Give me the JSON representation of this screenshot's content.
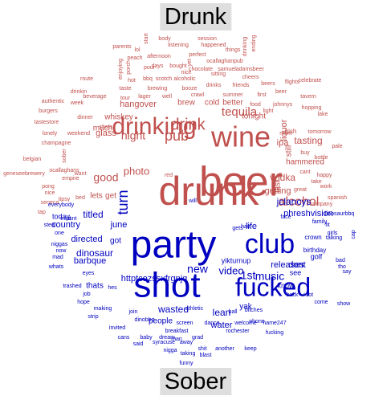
{
  "labels": {
    "top": "Drunk",
    "bottom": "Sober"
  },
  "colors": {
    "drunk": "#c0504d",
    "sober": "#0000c0"
  },
  "words": [
    {
      "t": "body",
      "c": "drunk",
      "s": 7
    },
    {
      "t": "start",
      "c": "drunk",
      "s": 7
    },
    {
      "t": "lol",
      "c": "drunk",
      "s": 7
    },
    {
      "t": "session",
      "c": "drunk",
      "s": 7
    },
    {
      "t": "ending",
      "c": "drunk",
      "s": 7
    },
    {
      "t": "parents",
      "c": "drunk",
      "s": 7
    },
    {
      "t": "listening",
      "c": "drunk",
      "s": 7
    },
    {
      "t": "happened",
      "c": "drunk",
      "s": 7
    },
    {
      "t": "things",
      "c": "drunk",
      "s": 7
    },
    {
      "t": "drinking",
      "c": "drunk",
      "s": 7
    },
    {
      "t": "enjoying",
      "c": "drunk",
      "s": 7
    },
    {
      "t": "porch",
      "c": "drunk",
      "s": 7
    },
    {
      "t": "peach",
      "c": "drunk",
      "s": 7
    },
    {
      "t": "afternoon",
      "c": "drunk",
      "s": 7
    },
    {
      "t": "perfect",
      "c": "drunk",
      "s": 7
    },
    {
      "t": "chocolate",
      "c": "drunk",
      "s": 7
    },
    {
      "t": "ocallaghanpub",
      "c": "drunk",
      "s": 7
    },
    {
      "t": "samueladamsbeer",
      "c": "drunk",
      "s": 7
    },
    {
      "t": "route",
      "c": "drunk",
      "s": 7
    },
    {
      "t": "pour",
      "c": "drunk",
      "s": 7
    },
    {
      "t": "days",
      "c": "drunk",
      "s": 7
    },
    {
      "t": "bought",
      "c": "drunk",
      "s": 7
    },
    {
      "t": "yet",
      "c": "drunk",
      "s": 7
    },
    {
      "t": "nice",
      "c": "drunk",
      "s": 7
    },
    {
      "t": "hot",
      "c": "drunk",
      "s": 7
    },
    {
      "t": "bbq",
      "c": "drunk",
      "s": 7
    },
    {
      "t": "scotch",
      "c": "drunk",
      "s": 7
    },
    {
      "t": "alcoholic",
      "c": "drunk",
      "s": 7
    },
    {
      "t": "sitting",
      "c": "drunk",
      "s": 7
    },
    {
      "t": "cheers",
      "c": "drunk",
      "s": 7
    },
    {
      "t": "celebrate",
      "c": "drunk",
      "s": 7
    },
    {
      "t": "flights",
      "c": "drunk",
      "s": 7
    },
    {
      "t": "tavern",
      "c": "drunk",
      "s": 7
    },
    {
      "t": "drinkin",
      "c": "drunk",
      "s": 7
    },
    {
      "t": "taste",
      "c": "drunk",
      "s": 7
    },
    {
      "t": "brewing",
      "c": "drunk",
      "s": 7
    },
    {
      "t": "booze",
      "c": "drunk",
      "s": 7
    },
    {
      "t": "drinks",
      "c": "drunk",
      "s": 7
    },
    {
      "t": "friends",
      "c": "drunk",
      "s": 7
    },
    {
      "t": "beers",
      "c": "drunk",
      "s": 7
    },
    {
      "t": "authentic",
      "c": "drunk",
      "s": 7
    },
    {
      "t": "week",
      "c": "drunk",
      "s": 7
    },
    {
      "t": "lager",
      "c": "drunk",
      "s": 7
    },
    {
      "t": "well",
      "c": "drunk",
      "s": 7
    },
    {
      "t": "crawl",
      "c": "drunk",
      "s": 7
    },
    {
      "t": "summer",
      "c": "drunk",
      "s": 7
    },
    {
      "t": "first",
      "c": "drunk",
      "s": 7
    },
    {
      "t": "beer",
      "c": "drunk",
      "s": 7
    },
    {
      "t": "hopping",
      "c": "drunk",
      "s": 7
    },
    {
      "t": "burgers",
      "c": "drunk",
      "s": 7
    },
    {
      "t": "beverage",
      "c": "drunk",
      "s": 7
    },
    {
      "t": "tour",
      "c": "drunk",
      "s": 7
    },
    {
      "t": "food",
      "c": "drunk",
      "s": 7
    },
    {
      "t": "johnnys",
      "c": "drunk",
      "s": 7
    },
    {
      "t": "tastestore",
      "c": "drunk",
      "s": 7
    },
    {
      "t": "dinner",
      "c": "drunk",
      "s": 7
    },
    {
      "t": "light",
      "c": "drunk",
      "s": 7
    },
    {
      "t": "lonely",
      "c": "drunk",
      "s": 7
    },
    {
      "t": "weekend",
      "c": "drunk",
      "s": 7
    },
    {
      "t": "shots",
      "c": "drunk",
      "s": 7
    },
    {
      "t": "lake",
      "c": "drunk",
      "s": 7
    },
    {
      "t": "mom",
      "c": "drunk",
      "s": 7
    },
    {
      "t": "tomorrow",
      "c": "drunk",
      "s": 7
    },
    {
      "t": "champagne",
      "c": "drunk",
      "s": 7
    },
    {
      "t": "belgian",
      "c": "drunk",
      "s": 7
    },
    {
      "t": "pale",
      "c": "drunk",
      "s": 7
    },
    {
      "t": "sober",
      "c": "drunk",
      "s": 7
    },
    {
      "t": "buy",
      "c": "drunk",
      "s": 7
    },
    {
      "t": "bottle",
      "c": "drunk",
      "s": 7
    },
    {
      "t": "geneseebrewery",
      "c": "drunk",
      "s": 7
    },
    {
      "t": "ocallaghans",
      "c": "drunk",
      "s": 7
    },
    {
      "t": "empire",
      "c": "drunk",
      "s": 7
    },
    {
      "t": "want",
      "c": "drunk",
      "s": 7
    },
    {
      "t": "cant",
      "c": "drunk",
      "s": 7
    },
    {
      "t": "happy",
      "c": "drunk",
      "s": 7
    },
    {
      "t": "pong",
      "c": "drunk",
      "s": 7
    },
    {
      "t": "take",
      "c": "drunk",
      "s": 7
    },
    {
      "t": "tipsy",
      "c": "drunk",
      "s": 7
    },
    {
      "t": "nice",
      "c": "drunk",
      "s": 7
    },
    {
      "t": "seneca",
      "c": "drunk",
      "s": 7
    },
    {
      "t": "tap",
      "c": "drunk",
      "s": 7
    },
    {
      "t": "bed",
      "c": "drunk",
      "s": 7
    },
    {
      "t": "red",
      "c": "drunk",
      "s": 7
    },
    {
      "t": "great",
      "c": "drunk",
      "s": 7
    },
    {
      "t": "work",
      "c": "drunk",
      "s": 7
    },
    {
      "t": "spanish",
      "c": "drunk",
      "s": 7
    },
    {
      "t": "company",
      "c": "drunk",
      "s": 7
    },
    {
      "t": "whiskey",
      "c": "drunk",
      "s": 10
    },
    {
      "t": "brew",
      "c": "drunk",
      "s": 10
    },
    {
      "t": "tonight",
      "c": "drunk",
      "s": 10
    },
    {
      "t": "irish",
      "c": "drunk",
      "s": 8
    },
    {
      "t": "much",
      "c": "drunk",
      "s": 10
    },
    {
      "t": "hangover",
      "c": "drunk",
      "s": 11
    },
    {
      "t": "cold",
      "c": "drunk",
      "s": 10
    },
    {
      "t": "better",
      "c": "drunk",
      "s": 10
    },
    {
      "t": "ipa",
      "c": "drunk",
      "s": 11
    },
    {
      "t": "liquor",
      "c": "drunk",
      "s": 11
    },
    {
      "t": "glass",
      "c": "drunk",
      "s": 11
    },
    {
      "t": "still",
      "c": "drunk",
      "s": 10
    },
    {
      "t": "tasting",
      "c": "drunk",
      "s": 12
    },
    {
      "t": "vodka",
      "c": "drunk",
      "s": 12
    },
    {
      "t": "hammered",
      "c": "drunk",
      "s": 10
    },
    {
      "t": "photo",
      "c": "drunk",
      "s": 13
    },
    {
      "t": "getting",
      "c": "drunk",
      "s": 11
    },
    {
      "t": "lets",
      "c": "drunk",
      "s": 10
    },
    {
      "t": "get",
      "c": "drunk",
      "s": 10
    },
    {
      "t": "last",
      "c": "drunk",
      "s": 10
    },
    {
      "t": "night",
      "c": "drunk",
      "s": 14
    },
    {
      "t": "good",
      "c": "drunk",
      "s": 14
    },
    {
      "t": "tequila",
      "c": "drunk",
      "s": 15
    },
    {
      "t": "pub",
      "c": "drunk",
      "s": 18
    },
    {
      "t": "alcohol",
      "c": "drunk",
      "s": 16
    },
    {
      "t": "drink",
      "c": "drunk",
      "s": 20
    },
    {
      "t": "wine",
      "c": "drunk",
      "s": 36
    },
    {
      "t": "drinking",
      "c": "drunk",
      "s": 30
    },
    {
      "t": "beer",
      "c": "drunk",
      "s": 52
    },
    {
      "t": "drunk",
      "c": "drunk",
      "s": 50
    },
    {
      "t": "party",
      "c": "sober",
      "s": 48
    },
    {
      "t": "shot",
      "c": "sober",
      "s": 44
    },
    {
      "t": "club",
      "c": "sober",
      "s": 34
    },
    {
      "t": "fucked",
      "c": "sober",
      "s": 32
    },
    {
      "t": "turn",
      "c": "sober",
      "s": 18
    },
    {
      "t": "1st",
      "c": "sober",
      "s": 14
    },
    {
      "t": "music",
      "c": "sober",
      "s": 14
    },
    {
      "t": "new",
      "c": "sober",
      "s": 14
    },
    {
      "t": "video",
      "c": "sober",
      "s": 13
    },
    {
      "t": "country",
      "c": "sober",
      "s": 11
    },
    {
      "t": "june",
      "c": "sober",
      "s": 11
    },
    {
      "t": "titled",
      "c": "sober",
      "s": 12
    },
    {
      "t": "jclancys",
      "c": "sober",
      "s": 12
    },
    {
      "t": "phreshvision",
      "c": "sober",
      "s": 11
    },
    {
      "t": "life",
      "c": "sober",
      "s": 11
    },
    {
      "t": "directed",
      "c": "sober",
      "s": 11
    },
    {
      "t": "dinosaur",
      "c": "sober",
      "s": 12
    },
    {
      "t": "barbque",
      "c": "sober",
      "s": 11
    },
    {
      "t": "got",
      "c": "sober",
      "s": 10
    },
    {
      "t": "releases",
      "c": "sober",
      "s": 11
    },
    {
      "t": "dont",
      "c": "sober",
      "s": 11
    },
    {
      "t": "crown",
      "c": "sober",
      "s": 8
    },
    {
      "t": "talking",
      "c": "sober",
      "s": 7
    },
    {
      "t": "httptcozssxfrgnjq",
      "c": "sober",
      "s": 11
    },
    {
      "t": "thats",
      "c": "sober",
      "s": 10
    },
    {
      "t": "wasted",
      "c": "sober",
      "s": 12
    },
    {
      "t": "people",
      "c": "sober",
      "s": 10
    },
    {
      "t": "lean",
      "c": "sober",
      "s": 12
    },
    {
      "t": "yak",
      "c": "sober",
      "s": 10
    },
    {
      "t": "water",
      "c": "sober",
      "s": 11
    },
    {
      "t": "know",
      "c": "sober",
      "s": 9
    },
    {
      "t": "see",
      "c": "sober",
      "s": 9
    },
    {
      "t": "birthday",
      "c": "sober",
      "s": 8
    },
    {
      "t": "golf",
      "c": "sober",
      "s": 9
    },
    {
      "t": "everybody",
      "c": "sober",
      "s": 7
    },
    {
      "t": "today",
      "c": "sober",
      "s": 9
    },
    {
      "t": "steal",
      "c": "sober",
      "s": 7
    },
    {
      "t": "trust",
      "c": "sober",
      "s": 7
    },
    {
      "t": "isnt",
      "c": "sober",
      "s": 7
    },
    {
      "t": "hair",
      "c": "sober",
      "s": 7
    },
    {
      "t": "family",
      "c": "sober",
      "s": 7
    },
    {
      "t": "fit",
      "c": "sober",
      "s": 7
    },
    {
      "t": "girls",
      "c": "sober",
      "s": 7
    },
    {
      "t": "cap",
      "c": "sober",
      "s": 7
    },
    {
      "t": "one",
      "c": "sober",
      "s": 7
    },
    {
      "t": "niggas",
      "c": "sober",
      "s": 7
    },
    {
      "t": "now",
      "c": "sober",
      "s": 7
    },
    {
      "t": "mad",
      "c": "sober",
      "s": 7
    },
    {
      "t": "gets",
      "c": "sober",
      "s": 7
    },
    {
      "t": "bad",
      "c": "sober",
      "s": 7
    },
    {
      "t": "whats",
      "c": "sober",
      "s": 7
    },
    {
      "t": "eyes",
      "c": "sober",
      "s": 7
    },
    {
      "t": "yikturnup",
      "c": "sober",
      "s": 9
    },
    {
      "t": "tho",
      "c": "sober",
      "s": 7
    },
    {
      "t": "say",
      "c": "sober",
      "s": 7
    },
    {
      "t": "trashed",
      "c": "sober",
      "s": 7
    },
    {
      "t": "hes",
      "c": "sober",
      "s": 7
    },
    {
      "t": "job",
      "c": "sober",
      "s": 7
    },
    {
      "t": "back",
      "c": "sober",
      "s": 7
    },
    {
      "t": "root",
      "c": "sober",
      "s": 7
    },
    {
      "t": "hope",
      "c": "sober",
      "s": 7
    },
    {
      "t": "come",
      "c": "sober",
      "s": 7
    },
    {
      "t": "show",
      "c": "sober",
      "s": 7
    },
    {
      "t": "making",
      "c": "sober",
      "s": 7
    },
    {
      "t": "join",
      "c": "sober",
      "s": 7
    },
    {
      "t": "athletic",
      "c": "sober",
      "s": 7
    },
    {
      "t": "ball",
      "c": "sober",
      "s": 7
    },
    {
      "t": "bitches",
      "c": "sober",
      "s": 7
    },
    {
      "t": "strip",
      "c": "sober",
      "s": 7
    },
    {
      "t": "dinobbq",
      "c": "sober",
      "s": 7
    },
    {
      "t": "phone",
      "c": "sober",
      "s": 7
    },
    {
      "t": "screen",
      "c": "sober",
      "s": 7
    },
    {
      "t": "dance",
      "c": "sober",
      "s": 7
    },
    {
      "t": "welcome",
      "c": "sober",
      "s": 7
    },
    {
      "t": "name247",
      "c": "sober",
      "s": 7
    },
    {
      "t": "invited",
      "c": "sober",
      "s": 7
    },
    {
      "t": "breakfast",
      "c": "sober",
      "s": 7
    },
    {
      "t": "rochester",
      "c": "sober",
      "s": 7
    },
    {
      "t": "fucking",
      "c": "sober",
      "s": 7
    },
    {
      "t": "cans",
      "c": "sober",
      "s": 7
    },
    {
      "t": "baby",
      "c": "sober",
      "s": 7
    },
    {
      "t": "dream",
      "c": "sober",
      "s": 7
    },
    {
      "t": "man",
      "c": "sober",
      "s": 7
    },
    {
      "t": "grad",
      "c": "sober",
      "s": 7
    },
    {
      "t": "said",
      "c": "sober",
      "s": 7
    },
    {
      "t": "syracuse",
      "c": "sober",
      "s": 7
    },
    {
      "t": "away",
      "c": "sober",
      "s": 7
    },
    {
      "t": "shit",
      "c": "sober",
      "s": 7
    },
    {
      "t": "another",
      "c": "sober",
      "s": 7
    },
    {
      "t": "keep",
      "c": "sober",
      "s": 7
    },
    {
      "t": "nigga",
      "c": "sober",
      "s": 7
    },
    {
      "t": "taking",
      "c": "sober",
      "s": 7
    },
    {
      "t": "blast",
      "c": "sober",
      "s": 7
    },
    {
      "t": "funny",
      "c": "sober",
      "s": 7
    },
    {
      "t": "dinosaurbbq",
      "c": "sober",
      "s": 7
    },
    {
      "t": "face",
      "c": "sober",
      "s": 7
    },
    {
      "t": "will",
      "c": "sober",
      "s": 7
    }
  ]
}
